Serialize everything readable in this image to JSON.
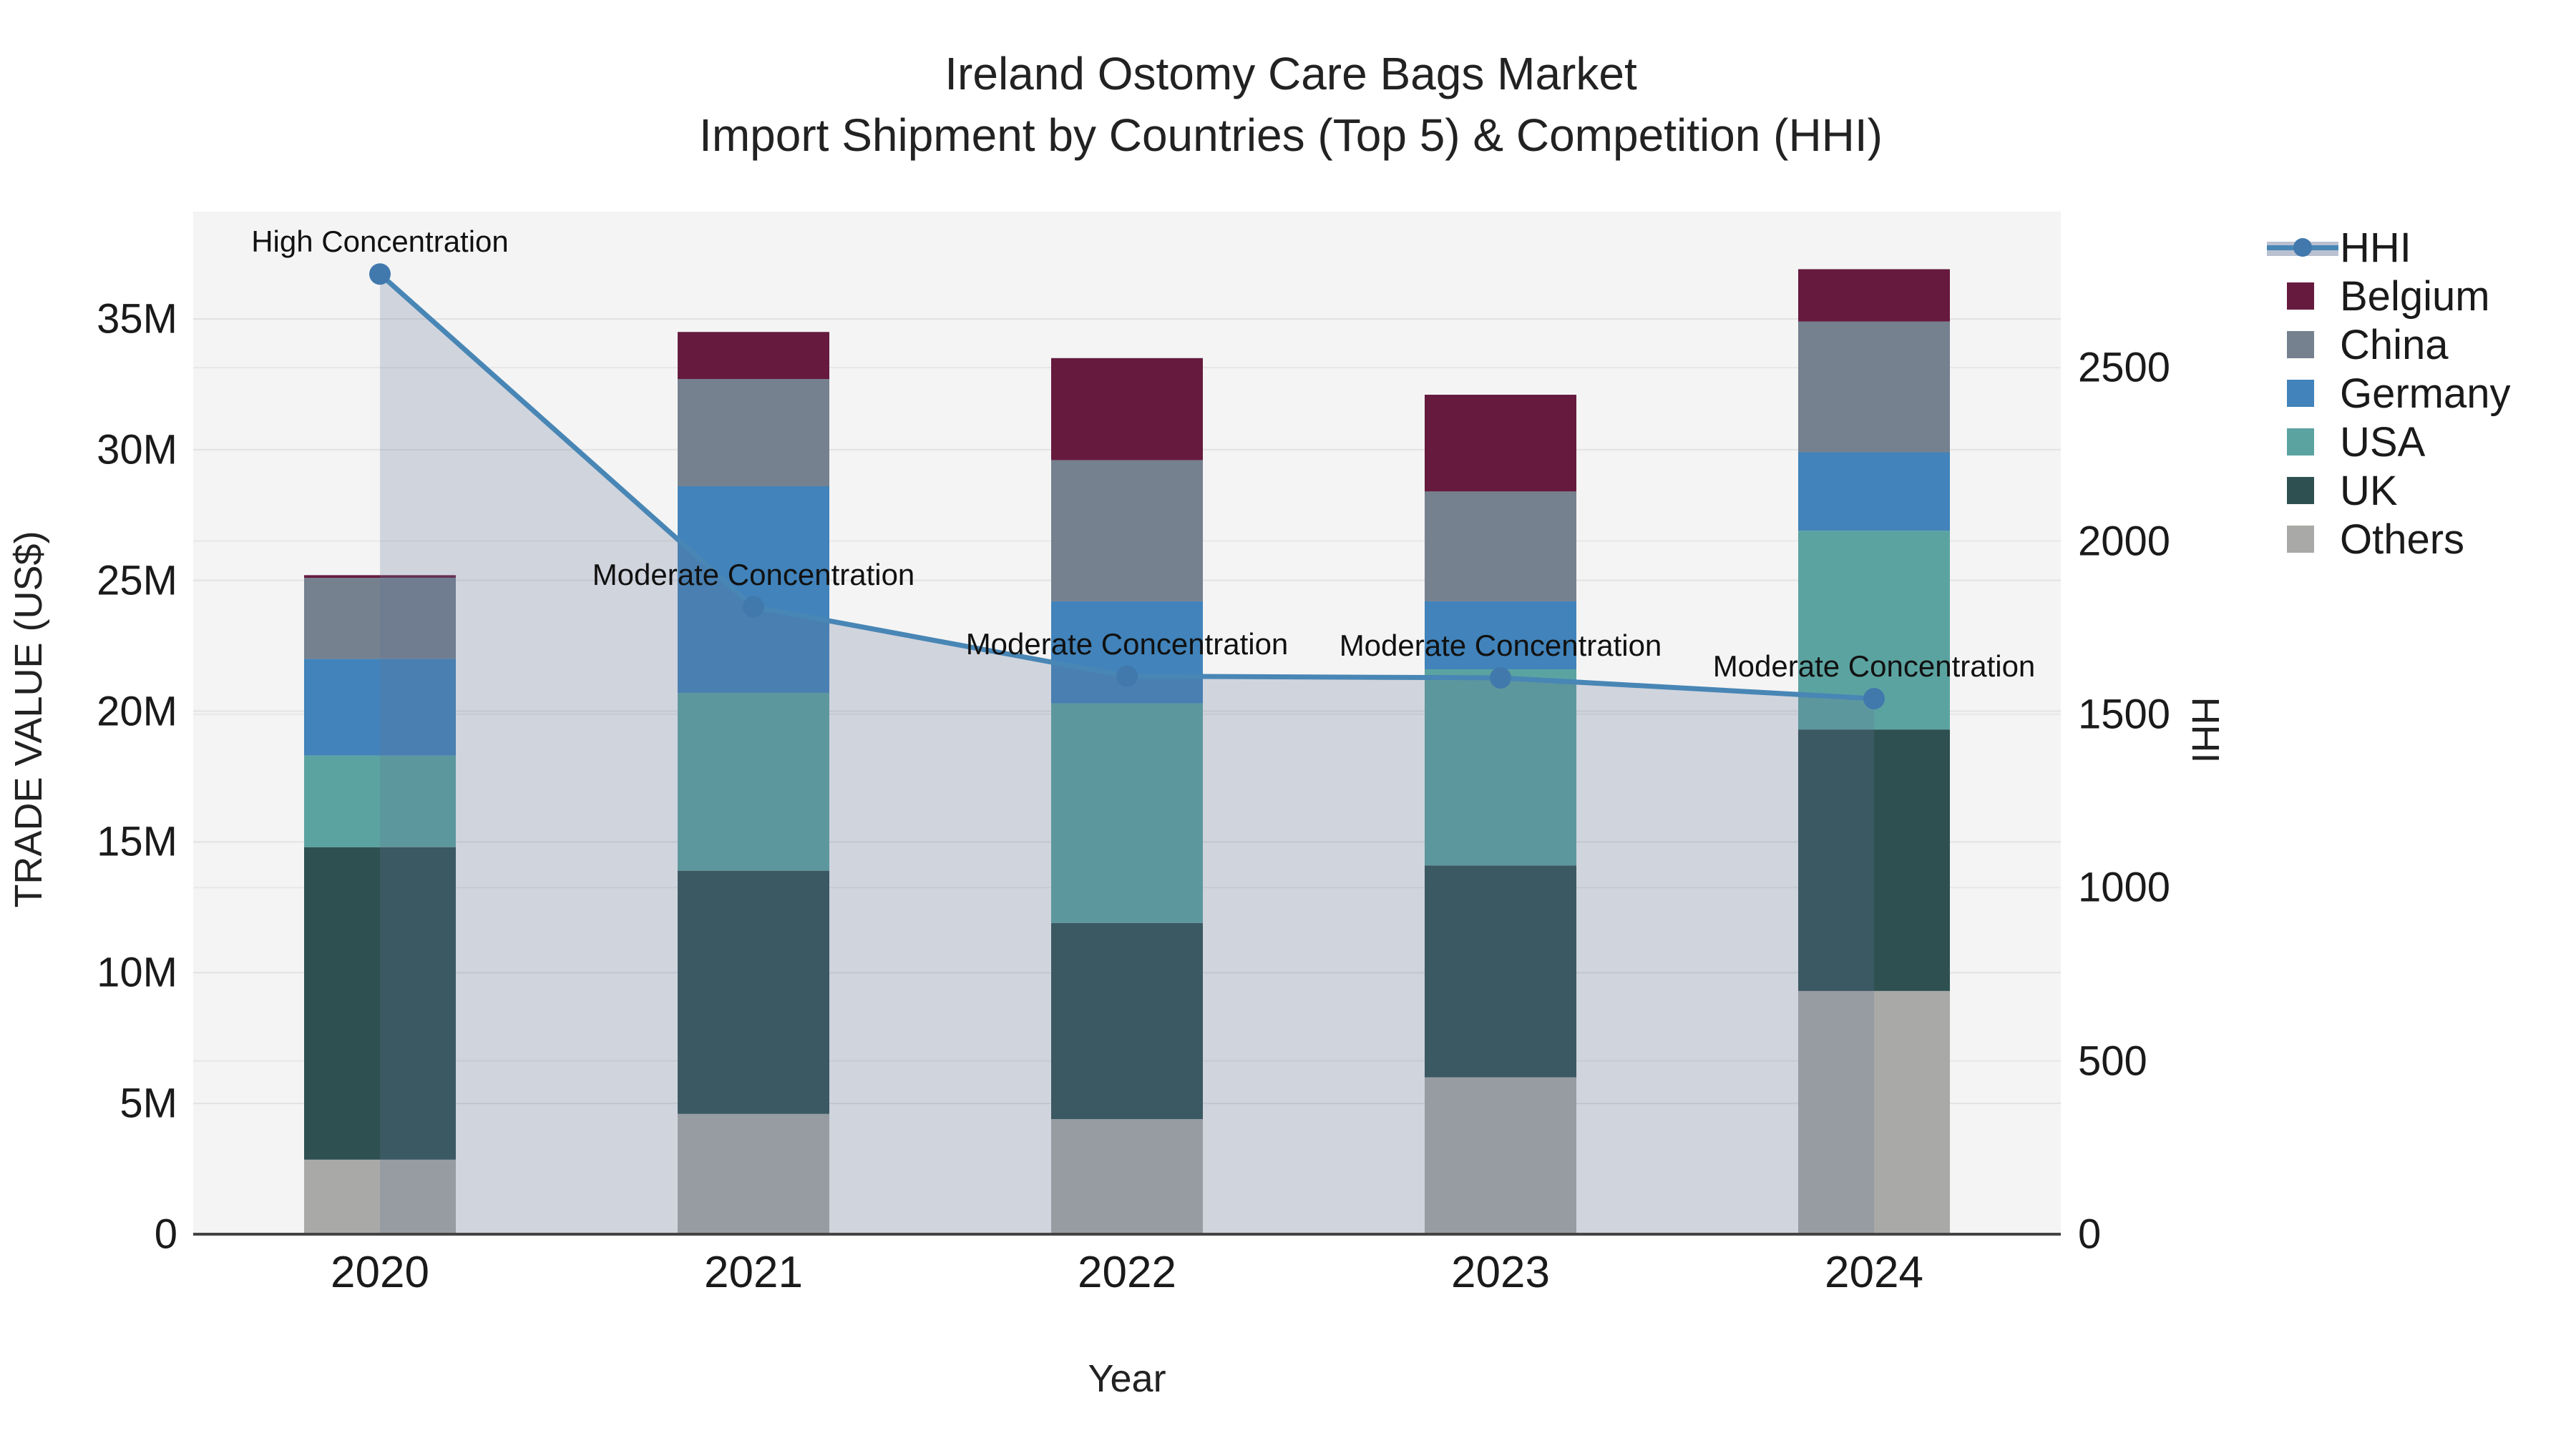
{
  "title": {
    "line1": "Ireland Ostomy Care Bags Market",
    "line2": "Import Shipment by Countries (Top 5) & Competition (HHI)"
  },
  "axes": {
    "y_left": {
      "title": "TRADE VALUE (US$)",
      "tick_labels": [
        "0",
        "5M",
        "10M",
        "15M",
        "20M",
        "25M",
        "30M",
        "35M"
      ],
      "tick_values_musd": [
        0,
        5,
        10,
        15,
        20,
        25,
        30,
        35
      ]
    },
    "y_right": {
      "title": "HHI",
      "tick_labels": [
        "0",
        "500",
        "1000",
        "1500",
        "2000",
        "2500"
      ],
      "tick_values": [
        0,
        500,
        1000,
        1500,
        2000,
        2500
      ]
    },
    "x": {
      "title": "Year",
      "categories": [
        "2020",
        "2021",
        "2022",
        "2023",
        "2024"
      ]
    }
  },
  "legend": {
    "hhi_label": "HHI",
    "items": [
      {
        "label": "Belgium",
        "color": "#661b3e"
      },
      {
        "label": "China",
        "color": "#75818f"
      },
      {
        "label": "Germany",
        "color": "#4183ba"
      },
      {
        "label": "USA",
        "color": "#5ba3a0"
      },
      {
        "label": "UK",
        "color": "#2e5051"
      },
      {
        "label": "Others",
        "color": "#a9aaa7"
      }
    ]
  },
  "annotations": [
    {
      "label": "High Concentration",
      "year": "2020"
    },
    {
      "label": "Moderate Concentration",
      "year": "2021"
    },
    {
      "label": "Moderate Concentration",
      "year": "2022"
    },
    {
      "label": "Moderate Concentration",
      "year": "2023"
    },
    {
      "label": "Moderate Concentration",
      "year": "2024"
    }
  ],
  "chart_data": {
    "type": "bar-stacked-with-line",
    "title": "Ireland Ostomy Care Bags Market — Import Shipment by Countries (Top 5) & Competition (HHI)",
    "categories": [
      "2020",
      "2021",
      "2022",
      "2023",
      "2024"
    ],
    "xlabel": "Year",
    "grid": true,
    "legend_position": "right",
    "y_left": {
      "label": "TRADE VALUE (US$)",
      "lim": [
        0,
        39.1
      ],
      "unit": "M US$"
    },
    "y_right": {
      "label": "HHI",
      "lim": [
        0,
        2950
      ]
    },
    "series": [
      {
        "name": "Others",
        "color": "#a9aaa7",
        "values_musd": [
          2.85,
          4.6,
          4.4,
          6.0,
          9.3
        ]
      },
      {
        "name": "UK",
        "color": "#2e5051",
        "values_musd": [
          11.95,
          9.3,
          7.5,
          8.1,
          10.0
        ]
      },
      {
        "name": "USA",
        "color": "#5ba3a0",
        "values_musd": [
          3.5,
          6.8,
          8.4,
          7.5,
          7.6
        ]
      },
      {
        "name": "Germany",
        "color": "#4183ba",
        "values_musd": [
          3.7,
          7.9,
          3.9,
          2.6,
          3.0
        ]
      },
      {
        "name": "China",
        "color": "#75818f",
        "values_musd": [
          3.1,
          4.1,
          5.4,
          4.2,
          5.0
        ]
      },
      {
        "name": "Belgium",
        "color": "#661b3e",
        "values_musd": [
          0.1,
          1.8,
          3.9,
          3.7,
          2.0
        ]
      }
    ],
    "totals_musd": [
      25.2,
      34.5,
      33.5,
      32.1,
      36.9
    ],
    "hhi": {
      "name": "HHI",
      "values": [
        2770,
        1810,
        1610,
        1605,
        1545
      ],
      "line_color": "#4886b5",
      "marker_color": "#4179ad",
      "area_fill": "rgba(100,115,150,0.25)"
    }
  }
}
